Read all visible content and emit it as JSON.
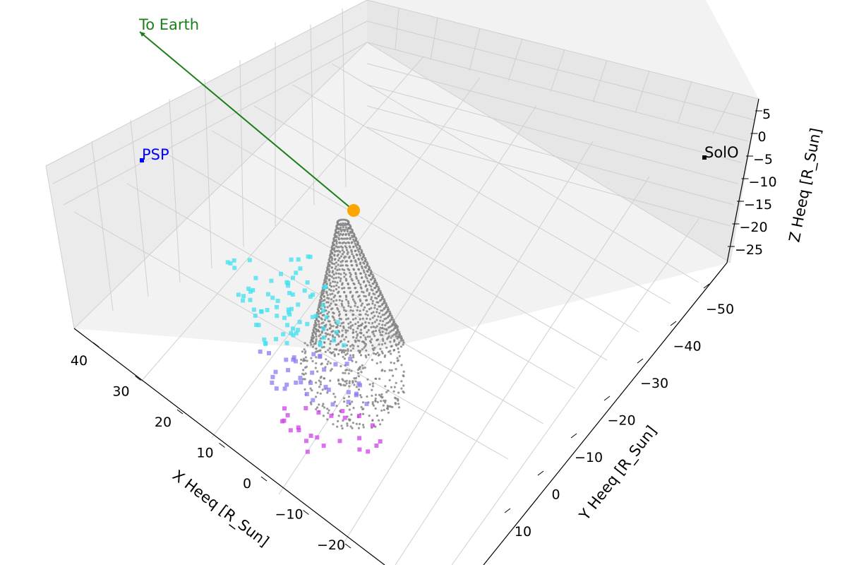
{
  "chart_data": {
    "type": "scatter",
    "projection": "3d",
    "xlabel": "X Heeq [R_Sun]",
    "ylabel": "Y Heeq [R_Sun]",
    "zlabel": "Z Heeq [R_Sun]",
    "x_ticks": [
      "40",
      "30",
      "20",
      "10",
      "0",
      "−10",
      "−20"
    ],
    "y_ticks": [
      "−50",
      "−40",
      "−30",
      "−20",
      "−10",
      "0",
      "10"
    ],
    "z_ticks": [
      "5",
      "0",
      "−5",
      "−10",
      "−15",
      "−20",
      "−25"
    ],
    "grid": true,
    "annotations": [
      {
        "label": "To Earth",
        "color": "#1a7f1a",
        "kind": "arrow",
        "from": [
          0,
          0,
          0
        ],
        "direction": "toward Earth"
      },
      {
        "label": "PSP",
        "color": "#0000ff",
        "kind": "spacecraft"
      },
      {
        "label": "SolO",
        "color": "#000000",
        "kind": "spacecraft"
      }
    ],
    "sun": {
      "position": [
        0,
        0,
        0
      ],
      "color": "#ffa500"
    },
    "series": [
      {
        "kind": "model-surface",
        "shape": "croissant flux rope",
        "color": "#808080"
      },
      {
        "kind": "observed-points",
        "marker": "square",
        "colormap": [
          "#40e0f0",
          "#8a7cf0",
          "#d040e8"
        ]
      }
    ],
    "colors": {
      "earth_line": "#1a7f1a",
      "psp": "#0000ff",
      "solo": "#000000",
      "sun": "#ffa500",
      "model": "#808080"
    }
  }
}
